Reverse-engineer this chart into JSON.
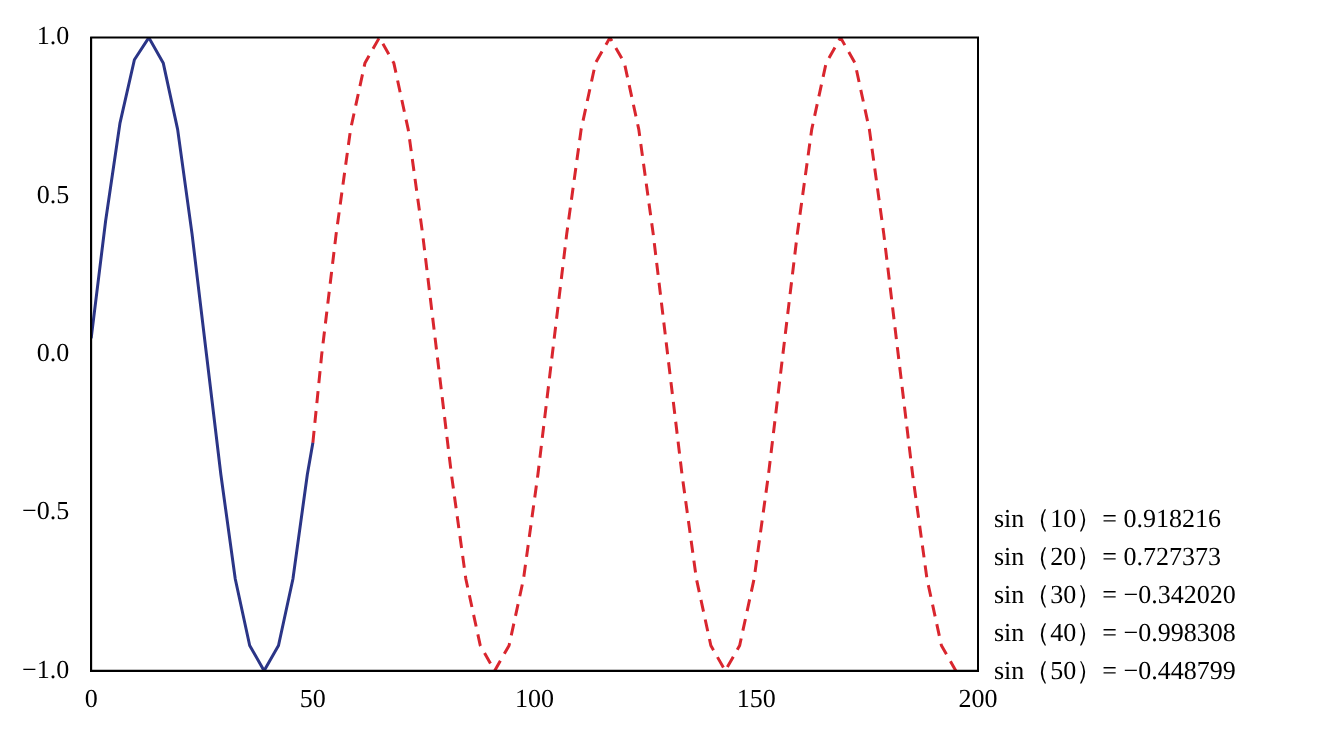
{
  "chart_data": {
    "type": "line",
    "series": [
      {
        "color": "#2b3587",
        "line_style": "solid",
        "x": [
          0,
          3.25,
          6.5,
          9.75,
          13,
          16.25,
          19.5,
          22.75,
          26,
          29.25,
          32.5,
          35.75,
          39,
          42.25,
          45.5,
          48.75,
          50
        ],
        "values": [
          0.05,
          0.42,
          0.73,
          0.93,
          1,
          0.92,
          0.71,
          0.38,
          0,
          -0.38,
          -0.71,
          -0.92,
          -1,
          -0.92,
          -0.71,
          -0.38,
          -0.28
        ]
      },
      {
        "color": "#d9262e",
        "line_style": "dashed",
        "x": [
          50,
          52,
          55.25,
          58.5,
          61.75,
          65,
          68.25,
          71.5,
          74.75,
          78,
          81.25,
          84.5,
          87.75,
          91,
          94.25,
          97.5,
          100.75,
          104,
          107.25,
          110.5,
          113.75,
          117,
          120.25,
          123.5,
          126.75,
          130,
          133.25,
          136.5,
          139.75,
          143,
          146.25,
          149.5,
          152.75,
          156,
          159.25,
          162.5,
          165.75,
          169,
          172.25,
          175.5,
          178.75,
          182,
          185.25,
          188.5,
          191.75,
          195
        ],
        "values": [
          -0.28,
          0,
          0.38,
          0.71,
          0.92,
          1,
          0.92,
          0.71,
          0.38,
          0,
          -0.38,
          -0.71,
          -0.92,
          -1,
          -0.92,
          -0.71,
          -0.38,
          0,
          0.38,
          0.71,
          0.92,
          1,
          0.92,
          0.71,
          0.38,
          0,
          -0.38,
          -0.71,
          -0.92,
          -1,
          -0.92,
          -0.71,
          -0.38,
          0,
          0.38,
          0.71,
          0.92,
          1,
          0.92,
          0.71,
          0.38,
          0,
          -0.38,
          -0.71,
          -0.92,
          -1
        ]
      }
    ],
    "xlim": [
      0,
      200
    ],
    "xticks": [
      0,
      50,
      100,
      150,
      200
    ],
    "ylim": [
      -1,
      1
    ],
    "yticks": [
      {
        "value": -1,
        "label": "−1.0"
      },
      {
        "value": -0.5,
        "label": "−0.5"
      },
      {
        "value": 0,
        "label": "0.0"
      },
      {
        "value": 0.5,
        "label": "0.5"
      },
      {
        "value": 1,
        "label": "1.0"
      }
    ],
    "grid": false,
    "legend": false,
    "marker": "none",
    "annotations": [
      "sin（10）= 0.918216",
      "sin（20）= 0.727373",
      "sin（30）= −0.342020",
      "sin（40）= −0.998308",
      "sin（50）= −0.448799"
    ]
  }
}
